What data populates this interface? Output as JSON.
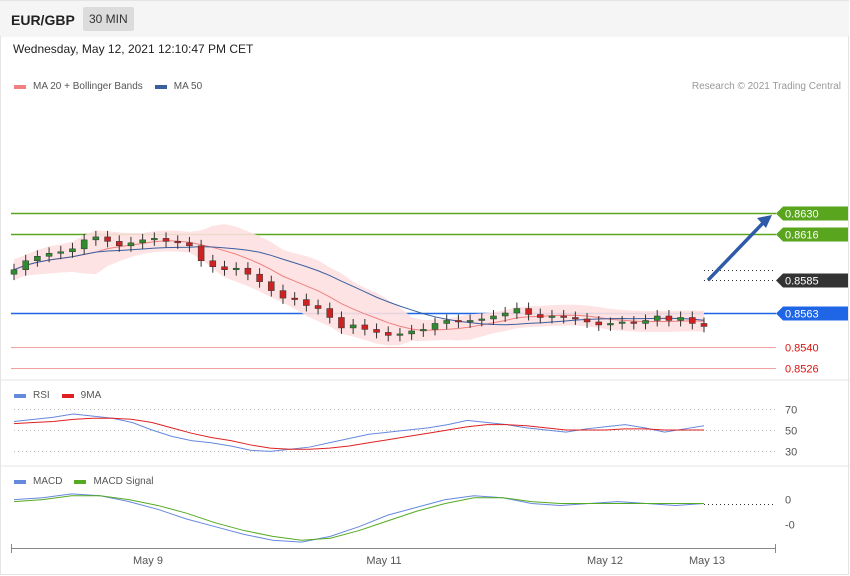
{
  "header": {
    "pair": "EUR/GBP",
    "timeframe": "30 MIN",
    "datetime": "Wednesday, May 12, 2021 12:10:47 PM CET",
    "credit": "Research © 2021 Trading Central"
  },
  "legends": {
    "price": [
      {
        "label": "MA 20 + Bollinger Bands",
        "color": "#f08080"
      },
      {
        "label": "MA 50",
        "color": "#3a5f9f"
      }
    ],
    "rsi": [
      {
        "label": "RSI",
        "color": "#6688dd"
      },
      {
        "label": "9MA",
        "color": "#e02020"
      }
    ],
    "macd": [
      {
        "label": "MACD",
        "color": "#6688dd"
      },
      {
        "label": "MACD Signal",
        "color": "#55aa22"
      }
    ]
  },
  "chart_data": [
    {
      "type": "candlestick",
      "levels": [
        {
          "value": "0.8630",
          "color": "#5aa51e",
          "style": "line+badge",
          "line_color": "#5aa51e"
        },
        {
          "value": "0.8616",
          "color": "#5aa51e",
          "style": "line+badge",
          "line_color": "#5aa51e"
        },
        {
          "value": "0.8585",
          "color": "#333333",
          "style": "badge",
          "line_color": "#333333"
        },
        {
          "value": "0.8563",
          "color": "#1e66e6",
          "style": "line+badge",
          "line_color": "#1e66e6"
        },
        {
          "value": "0.8540",
          "color": "#dd1111",
          "style": "text",
          "line_color": "#f4a0a0"
        },
        {
          "value": "0.8526",
          "color": "#dd1111",
          "style": "text",
          "line_color": "#f4a0a0"
        }
      ],
      "forecast_arrow": {
        "from": 0.8585,
        "to": 0.863,
        "color": "#2e5aa8"
      },
      "closes": [
        0.8592,
        0.8598,
        0.8601,
        0.8603,
        0.8604,
        0.8606,
        0.8612,
        0.8614,
        0.8611,
        0.8608,
        0.861,
        0.8612,
        0.8613,
        0.8611,
        0.861,
        0.8608,
        0.8598,
        0.8594,
        0.8592,
        0.8593,
        0.8589,
        0.8584,
        0.8578,
        0.8573,
        0.8572,
        0.8568,
        0.8566,
        0.856,
        0.8553,
        0.8555,
        0.8552,
        0.855,
        0.8548,
        0.8549,
        0.8551,
        0.8552,
        0.8556,
        0.8558,
        0.8557,
        0.8558,
        0.8559,
        0.8561,
        0.8563,
        0.8566,
        0.8562,
        0.856,
        0.8561,
        0.856,
        0.8559,
        0.8557,
        0.8555,
        0.8556,
        0.8557,
        0.8556,
        0.8558,
        0.8561,
        0.8558,
        0.856,
        0.8556,
        0.8554
      ]
    },
    {
      "type": "line",
      "series": [
        {
          "name": "RSI",
          "values": [
            58,
            60,
            62,
            65,
            63,
            61,
            57,
            50,
            44,
            40,
            38,
            35,
            31,
            30,
            32,
            34,
            38,
            42,
            46,
            48,
            50,
            52,
            55,
            59,
            57,
            55,
            52,
            50,
            48,
            51,
            53,
            55,
            52,
            48,
            51,
            54
          ]
        },
        {
          "name": "9MA",
          "values": [
            56,
            57,
            58,
            60,
            61,
            61,
            60,
            57,
            52,
            47,
            43,
            40,
            36,
            33,
            32,
            32,
            33,
            35,
            38,
            41,
            44,
            47,
            50,
            53,
            55,
            55,
            54,
            52,
            50,
            50,
            50,
            51,
            51,
            50,
            50,
            50
          ]
        }
      ],
      "ticks": [
        "70",
        "50",
        "30"
      ],
      "ylim": [
        20,
        80
      ]
    },
    {
      "type": "line",
      "series": [
        {
          "name": "MACD",
          "values": [
            0.0002,
            0.0003,
            0.0005,
            0.0004,
            0.0001,
            -0.0003,
            -0.0008,
            -0.0012,
            -0.0016,
            -0.0019,
            -0.002,
            -0.0017,
            -0.0012,
            -0.0006,
            -0.0002,
            0.0002,
            0.0004,
            0.0003,
            0.0,
            -0.0001,
            0.0,
            0.0001,
            0.0,
            -0.0001,
            0.0
          ]
        },
        {
          "name": "MACD Signal",
          "values": [
            0.0001,
            0.0002,
            0.0004,
            0.0004,
            0.0002,
            -0.0001,
            -0.0005,
            -0.001,
            -0.0014,
            -0.0017,
            -0.0019,
            -0.0018,
            -0.0014,
            -0.0009,
            -0.0004,
            0.0,
            0.0003,
            0.0003,
            0.0001,
            0.0,
            0.0,
            0.0,
            0.0,
            0.0,
            0.0
          ]
        }
      ],
      "ticks": [
        "0",
        "-0"
      ],
      "ylim": [
        -0.0022,
        0.0007
      ]
    }
  ],
  "x_ticks": [
    "May 9",
    "May 11",
    "May 12",
    "May 13"
  ]
}
